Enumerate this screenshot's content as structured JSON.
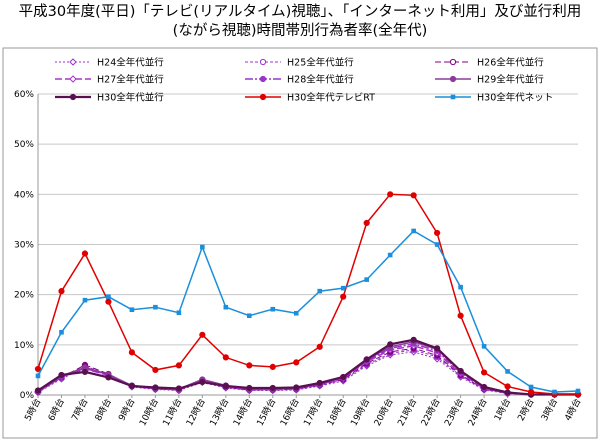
{
  "title_line1": "平成30年度(平日)「テレビ(リアルタイム)視聴」、「インターネット利用」及び並行利用",
  "title_line2": "(ながら視聴)時間帯別行為者率(全年代)",
  "chart_data": {
    "type": "line",
    "title": "平成30年度(平日)「テレビ(リアルタイム)視聴」、「インターネット利用」及び並行利用(ながら視聴)時間帯別行為者率(全年代)",
    "xlabel": "",
    "ylabel": "",
    "ylim": [
      0,
      60
    ],
    "yticks": [
      "0%",
      "10%",
      "20%",
      "30%",
      "40%",
      "50%",
      "60%"
    ],
    "grid": true,
    "legend_position": "top",
    "categories": [
      "5時台",
      "6時台",
      "7時台",
      "8時台",
      "9時台",
      "10時台",
      "11時台",
      "12時台",
      "13時台",
      "14時台",
      "15時台",
      "16時台",
      "17時台",
      "18時台",
      "19時台",
      "20時台",
      "21時台",
      "22時台",
      "23時台",
      "24時台",
      "1時台",
      "2時台",
      "3時台",
      "4時台"
    ],
    "series": [
      {
        "name": "H24全年代並行",
        "color": "#9933cc",
        "dash": "2,2",
        "marker": "diamond",
        "width": 1,
        "values": [
          0.5,
          3.2,
          5.5,
          3.8,
          1.6,
          1.1,
          0.9,
          2.5,
          1.4,
          0.9,
          0.9,
          1.0,
          1.8,
          2.8,
          5.8,
          8.0,
          8.6,
          7.2,
          3.6,
          1.0,
          0.3,
          0.1,
          0.1,
          0.1
        ]
      },
      {
        "name": "H25全年代並行",
        "color": "#9933cc",
        "dash": "3,2",
        "marker": "circle",
        "width": 1,
        "values": [
          0.6,
          3.4,
          5.8,
          4.0,
          1.7,
          1.2,
          1.0,
          2.7,
          1.5,
          1.0,
          1.0,
          1.1,
          1.9,
          3.0,
          6.0,
          8.3,
          9.0,
          7.6,
          3.8,
          1.1,
          0.3,
          0.1,
          0.1,
          0.1
        ]
      },
      {
        "name": "H26全年代並行",
        "color": "#800080",
        "dash": "6,3",
        "marker": "circle",
        "width": 1,
        "values": [
          0.6,
          3.5,
          6.0,
          4.2,
          1.8,
          1.2,
          1.0,
          2.8,
          1.6,
          1.0,
          1.0,
          1.2,
          2.0,
          3.1,
          6.3,
          8.6,
          9.3,
          7.9,
          4.0,
          1.2,
          0.4,
          0.1,
          0.1,
          0.1
        ]
      },
      {
        "name": "H27全年代並行",
        "color": "#aa33cc",
        "dash": "7,3",
        "marker": "diamond",
        "width": 1.5,
        "values": [
          0.7,
          3.6,
          5.2,
          3.9,
          1.7,
          1.3,
          1.1,
          2.9,
          1.7,
          1.1,
          1.1,
          1.3,
          2.1,
          3.3,
          6.6,
          9.0,
          9.8,
          8.4,
          4.3,
          1.3,
          0.4,
          0.1,
          0.1,
          0.1
        ]
      },
      {
        "name": "H28全年代並行",
        "color": "#9933cc",
        "dash": "8,2,2,2",
        "marker": "circle",
        "width": 1.5,
        "values": [
          0.7,
          3.7,
          5.3,
          4.0,
          1.8,
          1.3,
          1.1,
          3.0,
          1.8,
          1.1,
          1.2,
          1.3,
          2.2,
          3.4,
          6.8,
          9.3,
          10.2,
          8.8,
          4.5,
          1.4,
          0.4,
          0.1,
          0.1,
          0.1
        ]
      },
      {
        "name": "H29全年代並行",
        "color": "#8b3a9b",
        "dash": "",
        "marker": "circle",
        "width": 1.5,
        "values": [
          0.8,
          3.8,
          5.5,
          4.1,
          1.9,
          1.4,
          1.2,
          3.1,
          1.9,
          1.2,
          1.2,
          1.4,
          2.3,
          3.5,
          7.0,
          9.6,
          10.6,
          9.1,
          4.7,
          1.5,
          0.4,
          0.1,
          0.1,
          0.1
        ]
      },
      {
        "name": "H30全年代並行",
        "color": "#5a1050",
        "dash": "",
        "marker": "circle",
        "width": 2.2,
        "values": [
          0.9,
          4.0,
          4.6,
          3.5,
          1.8,
          1.5,
          1.3,
          2.6,
          1.8,
          1.4,
          1.4,
          1.5,
          2.4,
          3.6,
          7.1,
          10.1,
          11.0,
          9.3,
          4.8,
          1.6,
          0.5,
          0.1,
          0.1,
          0.1
        ]
      },
      {
        "name": "H30全年代テレビRT",
        "color": "#e00000",
        "dash": "",
        "marker": "circle",
        "width": 1.5,
        "values": [
          5.2,
          20.7,
          28.2,
          18.6,
          8.5,
          5.0,
          5.9,
          12.0,
          7.5,
          5.9,
          5.6,
          6.5,
          9.6,
          19.6,
          34.3,
          40.0,
          39.8,
          32.3,
          15.8,
          4.5,
          1.7,
          0.6,
          0.2,
          0.2
        ]
      },
      {
        "name": "H30全年代ネット",
        "color": "#1a8fdc",
        "dash": "",
        "marker": "square",
        "width": 1.5,
        "values": [
          3.8,
          12.5,
          18.9,
          19.6,
          17.0,
          17.5,
          16.4,
          29.5,
          17.5,
          15.8,
          17.1,
          16.3,
          20.7,
          21.3,
          23.0,
          27.9,
          32.7,
          30.0,
          21.5,
          9.7,
          4.7,
          1.6,
          0.6,
          0.8
        ]
      }
    ]
  }
}
